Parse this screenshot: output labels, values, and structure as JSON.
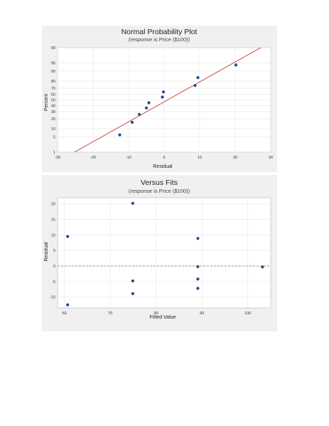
{
  "chart_data": [
    {
      "type": "scatter",
      "title": "Normal Probability Plot",
      "subtitle": "(response is Price ($100))",
      "xlabel": "Residual",
      "ylabel": "Percent",
      "xlim": [
        -30,
        30
      ],
      "y_scale": "normal-probability",
      "xticks": [
        "-30",
        "-20",
        "-10",
        "0",
        "10",
        "20",
        "30"
      ],
      "yticks": [
        "1",
        "5",
        "10",
        "20",
        "30",
        "40",
        "50",
        "60",
        "70",
        "80",
        "90",
        "95",
        "99"
      ],
      "grid": true,
      "fit_line": {
        "color": "#c0392b",
        "x": [
          -30,
          30
        ],
        "y_percent": [
          0.3,
          99.5
        ]
      },
      "points": [
        {
          "x": -12.5,
          "y": 6
        },
        {
          "x": -9,
          "y": 16
        },
        {
          "x": -7,
          "y": 26
        },
        {
          "x": -5,
          "y": 36
        },
        {
          "x": -4.3,
          "y": 45
        },
        {
          "x": -0.5,
          "y": 55
        },
        {
          "x": -0.2,
          "y": 64
        },
        {
          "x": 8.7,
          "y": 74
        },
        {
          "x": 9.5,
          "y": 84
        },
        {
          "x": 20.2,
          "y": 94
        }
      ],
      "point_color": "#1f4e8c"
    },
    {
      "type": "scatter",
      "title": "Versus Fits",
      "subtitle": "(response is Price ($100))",
      "xlabel": "Fitted Value",
      "ylabel": "Residual",
      "xlim": [
        58.5,
        105
      ],
      "ylim": [
        -13.5,
        22
      ],
      "xticks": [
        "60",
        "70",
        "80",
        "90",
        "100"
      ],
      "yticks": [
        "20",
        "15",
        "10",
        "5",
        "0",
        "-5",
        "-10"
      ],
      "grid": true,
      "reference_line": {
        "y": 0,
        "style": "dashed"
      },
      "points": [
        {
          "x": 60.7,
          "y": 9.5
        },
        {
          "x": 60.7,
          "y": -12.5
        },
        {
          "x": 74.9,
          "y": 20.2
        },
        {
          "x": 74.9,
          "y": -4.8
        },
        {
          "x": 74.9,
          "y": -8.9
        },
        {
          "x": 89.1,
          "y": 8.9
        },
        {
          "x": 89.1,
          "y": -0.2
        },
        {
          "x": 89.1,
          "y": -4.2
        },
        {
          "x": 89.1,
          "y": -7.2
        },
        {
          "x": 103.2,
          "y": -0.3
        }
      ],
      "point_color": "#1f4e8c"
    }
  ]
}
